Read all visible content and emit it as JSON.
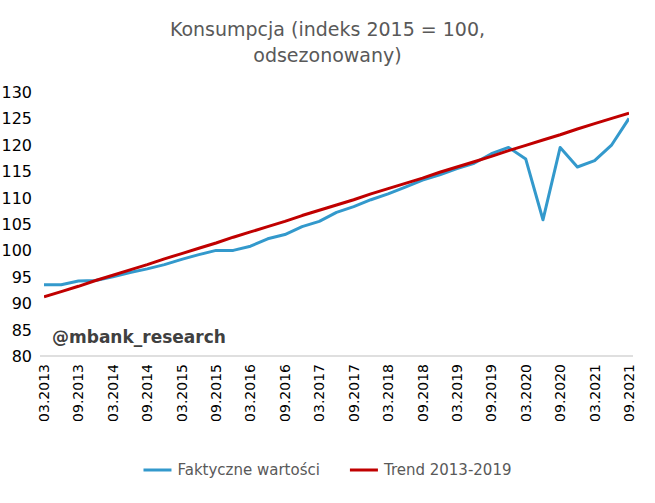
{
  "chart_data": {
    "type": "line",
    "title": "Konsumpcja (indeks 2015 = 100, odsezonowany)",
    "annotation": "@mbank_research",
    "categories": [
      "03.2013",
      null,
      "09.2013",
      null,
      "03.2014",
      null,
      "09.2014",
      null,
      "03.2015",
      null,
      "09.2015",
      null,
      "03.2016",
      null,
      "09.2016",
      null,
      "03.2017",
      null,
      "09.2017",
      null,
      "03.2018",
      null,
      "09.2018",
      null,
      "03.2019",
      null,
      "09.2019",
      null,
      "03.2020",
      null,
      "09.2020",
      null,
      "03.2021",
      null,
      "09.2021"
    ],
    "series": [
      {
        "name": "Faktyczne wartości",
        "color": "#3399CC",
        "values": [
          93.5,
          93.5,
          94.2,
          94.3,
          95.0,
          95.8,
          96.5,
          97.3,
          98.3,
          99.2,
          100.0,
          100.0,
          100.8,
          102.2,
          103.0,
          104.5,
          105.5,
          107.2,
          108.3,
          109.6,
          110.7,
          112.0,
          113.3,
          114.3,
          115.5,
          116.5,
          118.3,
          119.5,
          117.3,
          105.8,
          119.5,
          115.8,
          117.0,
          120.0,
          125.0
        ]
      },
      {
        "name": "Trend 2013-2019",
        "color": "#C00000",
        "values": [
          91.2,
          92.2,
          93.2,
          94.3,
          95.3,
          96.3,
          97.3,
          98.4,
          99.4,
          100.4,
          101.4,
          102.5,
          103.5,
          104.5,
          105.5,
          106.6,
          107.6,
          108.6,
          109.6,
          110.7,
          111.7,
          112.7,
          113.7,
          114.8,
          115.8,
          116.8,
          117.8,
          118.9,
          119.9,
          120.9,
          121.9,
          123.0,
          124.0,
          125.0,
          126.0
        ]
      }
    ],
    "ylim": [
      80,
      130
    ],
    "yticks": [
      80,
      85,
      90,
      95,
      100,
      105,
      110,
      115,
      120,
      125,
      130
    ],
    "grid": false,
    "legend": "bottom"
  }
}
